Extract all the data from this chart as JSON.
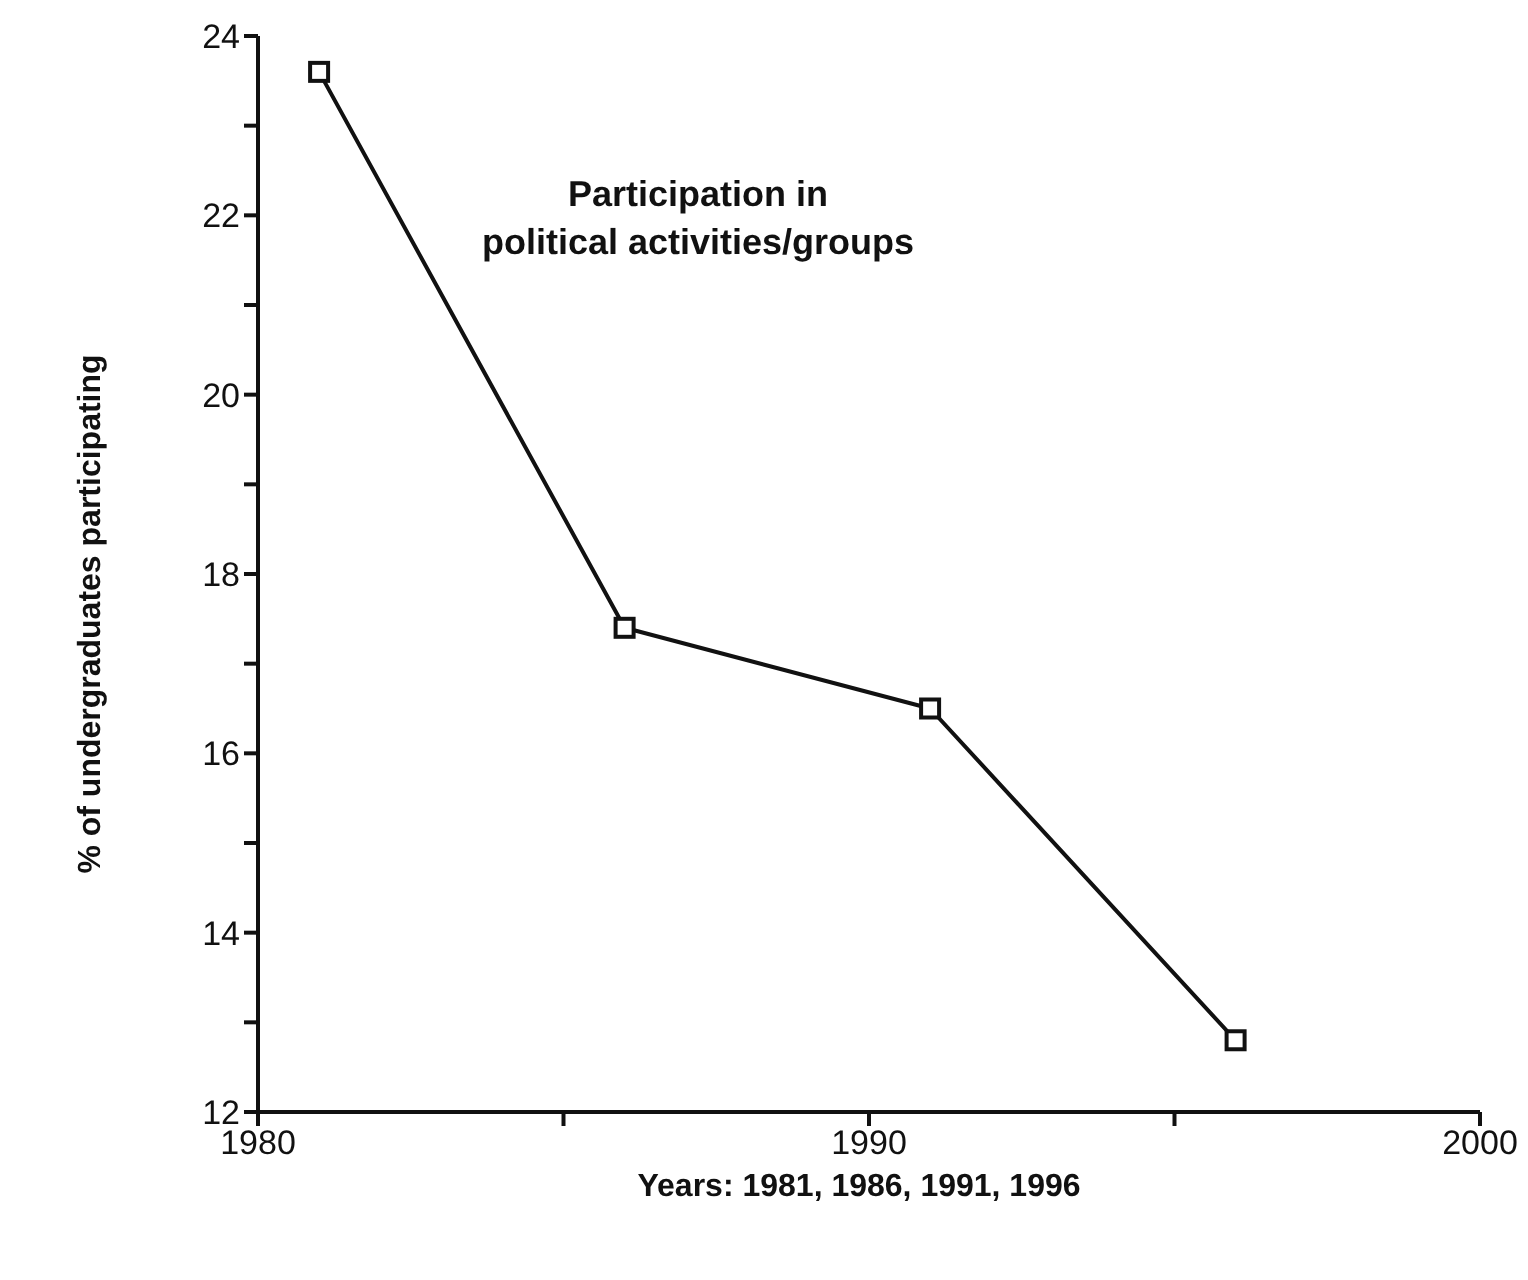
{
  "chart_data": {
    "type": "line",
    "title": "Participation in political activities/groups",
    "xlabel": "Years: 1981, 1986, 1991, 1996",
    "ylabel": "% of undergraduates participating",
    "x": [
      1981,
      1986,
      1991,
      1996
    ],
    "series": [
      {
        "color": "#111111",
        "values": [
          23.6,
          17.4,
          16.5,
          12.8
        ]
      }
    ],
    "xlim": [
      1980,
      2000
    ],
    "xticks": [
      1980,
      {
        "value": 1985,
        "label": null
      },
      1990,
      {
        "value": 1995,
        "label": null
      },
      2000
    ],
    "ylim": [
      12,
      24
    ],
    "yticks": [
      12,
      {
        "value": 13,
        "label": null
      },
      14,
      {
        "value": 15,
        "label": null
      },
      16,
      {
        "value": 17,
        "label": null
      },
      18,
      {
        "value": 19,
        "label": null
      },
      20,
      {
        "value": 21,
        "label": null
      },
      22,
      {
        "value": 23,
        "label": null
      },
      24
    ],
    "marker": "square",
    "line_style": "solid"
  }
}
